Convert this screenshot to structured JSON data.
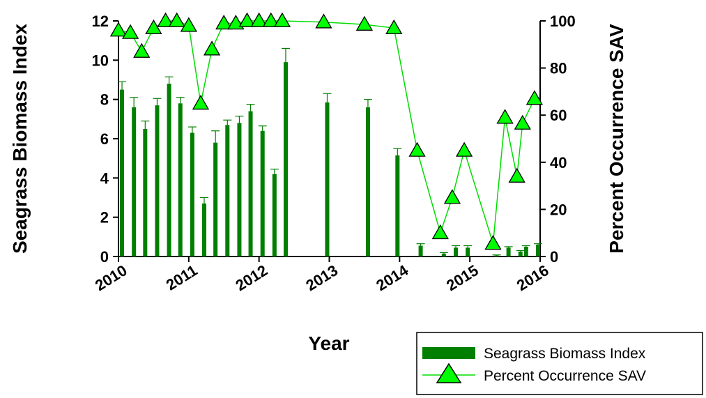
{
  "chart_data": {
    "type": "bar",
    "xlabel": "Year",
    "ylabel_left": "Seagrass Biomass Index",
    "ylabel_right": "Percent Occurrence SAV",
    "x_ticks": [
      "2010",
      "2011",
      "2012",
      "2013",
      "2014",
      "2015",
      "2016"
    ],
    "x_range": [
      2010,
      2016
    ],
    "y_left_range": [
      0,
      12
    ],
    "y_left_ticks": [
      "0",
      "2",
      "4",
      "6",
      "8",
      "10",
      "12"
    ],
    "y_right_range": [
      0,
      100
    ],
    "y_right_ticks": [
      "0",
      "20",
      "40",
      "60",
      "80",
      "100"
    ],
    "colors": {
      "bar": "#007f00",
      "marker": "#00ff00",
      "line": "#00dd00"
    },
    "legend": {
      "placement": "bottom-right",
      "entries": [
        "Seagrass Biomass Index",
        "Percent Occurrence SAV"
      ]
    },
    "series": [
      {
        "name": "Seagrass Biomass Index",
        "axis": "left",
        "kind": "bar",
        "x": [
          2010.05,
          2010.22,
          2010.38,
          2010.55,
          2010.72,
          2010.88,
          2011.05,
          2011.22,
          2011.38,
          2011.55,
          2011.72,
          2011.88,
          2012.05,
          2012.22,
          2012.38,
          2012.97,
          2013.55,
          2013.97,
          2014.3,
          2014.63,
          2014.8,
          2014.97,
          2015.38,
          2015.55,
          2015.72,
          2015.8,
          2015.97
        ],
        "values": [
          8.5,
          7.6,
          6.5,
          7.7,
          8.8,
          7.8,
          6.3,
          2.7,
          5.8,
          6.7,
          6.8,
          7.4,
          6.4,
          4.2,
          9.9,
          7.85,
          7.6,
          5.15,
          0.55,
          0.15,
          0.45,
          0.45,
          0.05,
          0.45,
          0.25,
          0.5,
          0.6
        ],
        "errors": [
          0.4,
          0.5,
          0.4,
          0.35,
          0.35,
          0.3,
          0.3,
          0.3,
          0.6,
          0.25,
          0.35,
          0.35,
          0.25,
          0.25,
          0.7,
          0.45,
          0.4,
          0.35,
          0.1,
          0.05,
          0.1,
          0.1,
          0.03,
          0.05,
          0.05,
          0.05,
          0.05
        ]
      },
      {
        "name": "Percent Occurrence SAV",
        "axis": "right",
        "kind": "line-marker",
        "x": [
          2010.0,
          2010.17,
          2010.33,
          2010.5,
          2010.67,
          2010.83,
          2011.0,
          2011.17,
          2011.33,
          2011.5,
          2011.67,
          2011.83,
          2012.0,
          2012.17,
          2012.33,
          2012.92,
          2013.5,
          2013.92,
          2014.25,
          2014.58,
          2014.75,
          2014.92,
          2015.33,
          2015.5,
          2015.67,
          2015.75,
          2015.92
        ],
        "values": [
          96,
          95,
          87,
          97,
          100,
          100,
          98,
          65,
          88,
          99,
          99,
          100,
          100,
          100,
          100,
          99.5,
          98.5,
          97,
          45,
          10,
          25,
          45,
          5.5,
          59,
          34,
          56.5,
          67
        ]
      }
    ]
  }
}
